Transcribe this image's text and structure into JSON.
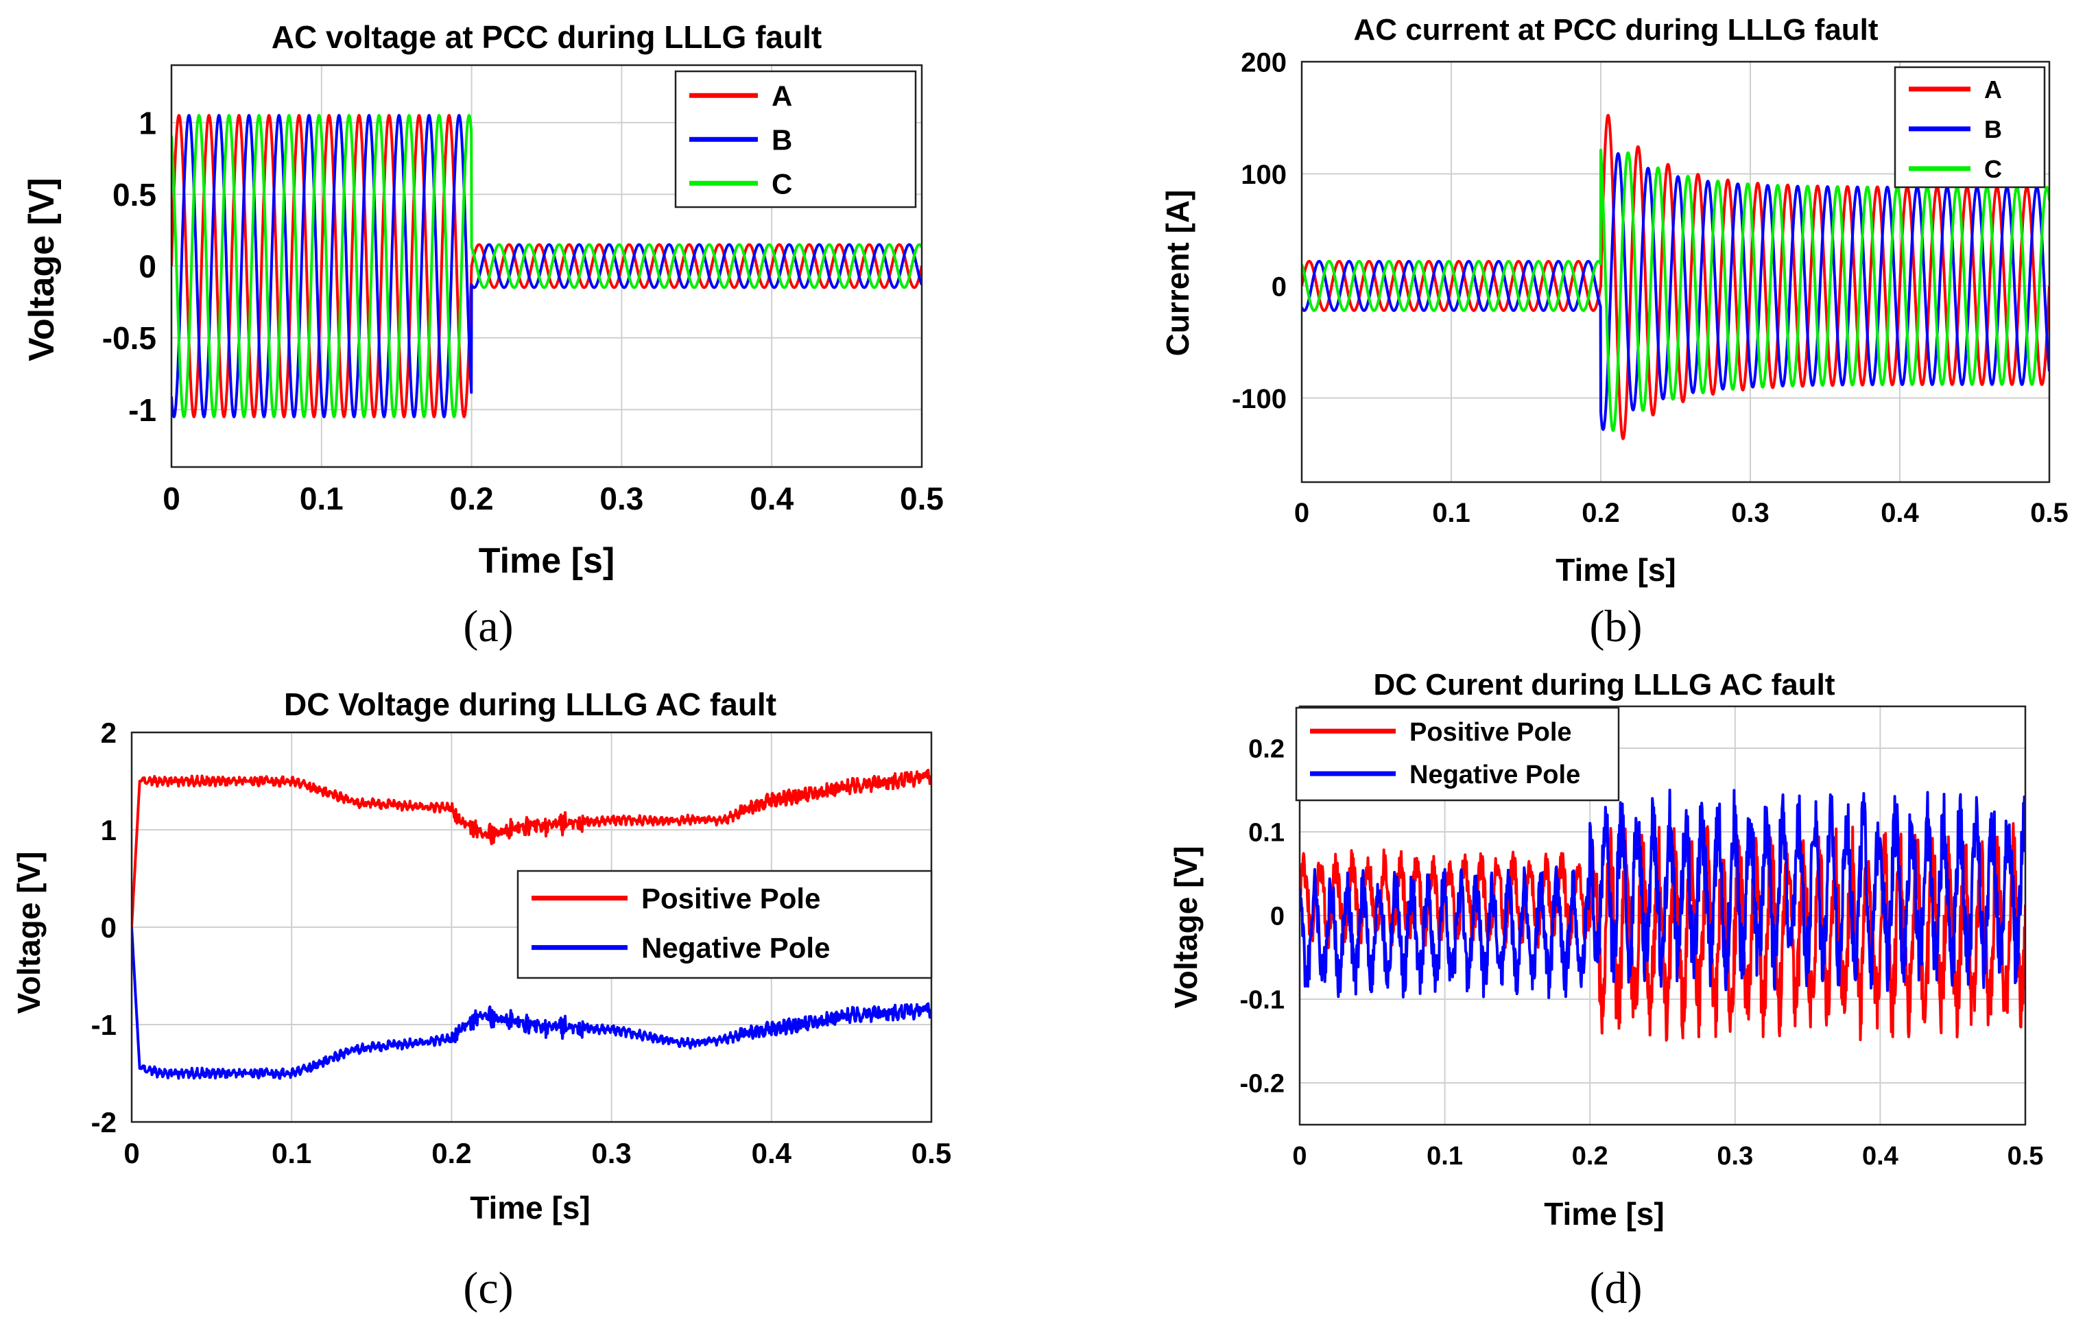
{
  "figure": {
    "captions": [
      "(a)",
      "(b)",
      "(c)",
      "(d)"
    ]
  },
  "chart_data": [
    {
      "type": "line",
      "title": "AC voltage at PCC during LLLG fault",
      "xlabel": "Time [s]",
      "ylabel": "Voltage [V]",
      "xlim": [
        0,
        0.5
      ],
      "ylim": [
        -1.4,
        1.4
      ],
      "xticks": [
        0,
        0.1,
        0.2,
        0.3,
        0.4,
        0.5
      ],
      "yticks": [
        -1,
        -0.5,
        0,
        0.5,
        1
      ],
      "grid": true,
      "legend_position": "top-right",
      "fault_time": 0.2,
      "waveform": "3-phase sinusoid, 50 Hz",
      "series": [
        {
          "name": "A",
          "color": "#ff0000",
          "phase_deg": 0,
          "amplitude_before": 1.05,
          "amplitude_after": 0.15
        },
        {
          "name": "B",
          "color": "#0000ff",
          "phase_deg": -120,
          "amplitude_before": 1.05,
          "amplitude_after": 0.15
        },
        {
          "name": "C",
          "color": "#00ee00",
          "phase_deg": 120,
          "amplitude_before": 1.05,
          "amplitude_after": 0.15
        }
      ]
    },
    {
      "type": "line",
      "title": "AC current at PCC during LLLG fault",
      "xlabel": "Time [s]",
      "ylabel": "Current [A]",
      "xlim": [
        0,
        0.5
      ],
      "ylim": [
        -175,
        200
      ],
      "xticks": [
        0,
        0.1,
        0.2,
        0.3,
        0.4,
        0.5
      ],
      "yticks": [
        -100,
        0,
        100,
        200
      ],
      "grid": true,
      "legend_position": "top-right",
      "fault_time": 0.2,
      "waveform": "3-phase sinusoid, 50 Hz",
      "series": [
        {
          "name": "A",
          "color": "#ff0000",
          "phase_deg": 0,
          "amplitude_before": 22,
          "amplitude_after": 88,
          "peak_after": 162
        },
        {
          "name": "B",
          "color": "#0000ff",
          "phase_deg": -120,
          "amplitude_before": 22,
          "amplitude_after": 88,
          "peak_after": 130
        },
        {
          "name": "C",
          "color": "#00ee00",
          "phase_deg": 120,
          "amplitude_before": 22,
          "amplitude_after": 88,
          "peak_after": 140
        }
      ]
    },
    {
      "type": "line",
      "title": "DC Voltage during LLLG AC fault",
      "xlabel": "Time [s]",
      "ylabel": "Voltage [V]",
      "xlim": [
        0,
        0.5
      ],
      "ylim": [
        -2,
        2
      ],
      "xticks": [
        0,
        0.1,
        0.2,
        0.3,
        0.4,
        0.5
      ],
      "yticks": [
        -2,
        -1,
        0,
        1,
        2
      ],
      "grid": true,
      "legend_position": "center-right",
      "series": [
        {
          "name": "Positive Pole",
          "color": "#ff0000",
          "x": [
            0,
            0.005,
            0.02,
            0.05,
            0.1,
            0.11,
            0.14,
            0.2,
            0.205,
            0.22,
            0.25,
            0.3,
            0.35,
            0.37,
            0.4,
            0.45,
            0.5
          ],
          "y": [
            0,
            1.5,
            1.5,
            1.5,
            1.5,
            1.45,
            1.28,
            1.22,
            1.1,
            0.95,
            1.05,
            1.1,
            1.1,
            1.1,
            1.3,
            1.45,
            1.55
          ]
        },
        {
          "name": "Negative Pole",
          "color": "#0000ff",
          "x": [
            0,
            0.005,
            0.02,
            0.05,
            0.1,
            0.11,
            0.14,
            0.2,
            0.205,
            0.22,
            0.25,
            0.3,
            0.35,
            0.37,
            0.4,
            0.45,
            0.5
          ],
          "y": [
            0,
            -1.45,
            -1.5,
            -1.5,
            -1.5,
            -1.45,
            -1.25,
            -1.15,
            -1.05,
            -0.9,
            -1.0,
            -1.05,
            -1.2,
            -1.15,
            -1.05,
            -0.9,
            -0.85
          ]
        }
      ]
    },
    {
      "type": "line",
      "title": "DC Curent during LLLG AC fault",
      "xlabel": "Time [s]",
      "ylabel": "Voltage [V]",
      "xlim": [
        0,
        0.5
      ],
      "ylim": [
        -0.25,
        0.25
      ],
      "xticks": [
        0,
        0.1,
        0.2,
        0.3,
        0.4,
        0.5
      ],
      "yticks": [
        -0.2,
        -0.1,
        0,
        0.1,
        0.2
      ],
      "grid": true,
      "legend_position": "top-left",
      "series": [
        {
          "name": "Positive Pole",
          "color": "#ff0000",
          "mean_before": 0.02,
          "amp_before": 0.06,
          "mean_after": -0.02,
          "amp_after": 0.13
        },
        {
          "name": "Negative Pole",
          "color": "#0000ff",
          "mean_before": -0.02,
          "amp_before": 0.08,
          "mean_after": 0.03,
          "amp_after": 0.12
        }
      ]
    }
  ]
}
